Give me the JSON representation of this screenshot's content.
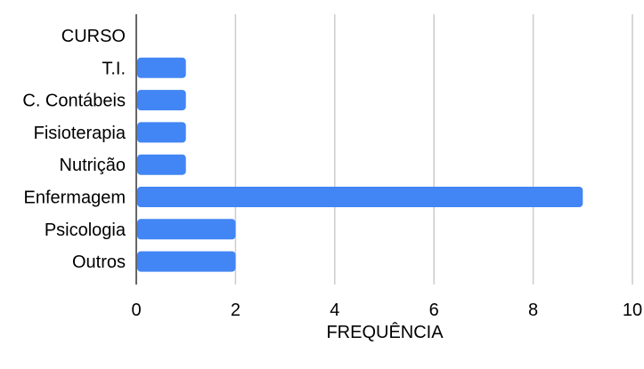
{
  "chart_data": {
    "type": "bar",
    "orientation": "horizontal",
    "categories": [
      "CURSO",
      "T.I.",
      "C. Contábeis",
      "Fisioterapia",
      "Nutrição",
      "Enfermagem",
      "Psicologia",
      "Outros"
    ],
    "values": [
      null,
      1,
      1,
      1,
      1,
      9,
      2,
      2
    ],
    "xlabel": "FREQUÊNCIA",
    "ylabel": "",
    "xlim": [
      0,
      10
    ],
    "xticks": [
      "0",
      "2",
      "4",
      "6",
      "8",
      "10"
    ],
    "grid": true,
    "legend": "none",
    "bar_color": "#4285f4",
    "grid_color": "#cccccc",
    "axis_color": "#333333",
    "text_color": "#000000"
  }
}
